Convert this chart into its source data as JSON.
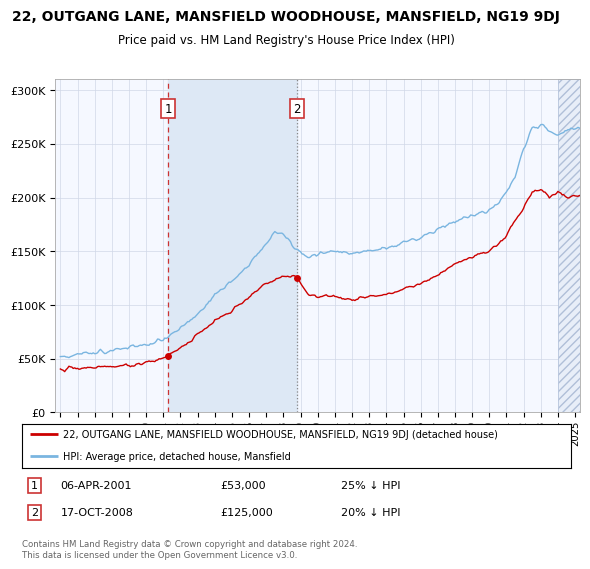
{
  "title": "22, OUTGANG LANE, MANSFIELD WOODHOUSE, MANSFIELD, NG19 9DJ",
  "subtitle": "Price paid vs. HM Land Registry's House Price Index (HPI)",
  "ylabel_ticks": [
    "£0",
    "£50K",
    "£100K",
    "£150K",
    "£200K",
    "£250K",
    "£300K"
  ],
  "ylim": [
    0,
    310000
  ],
  "xlim_start": 1994.7,
  "xlim_end": 2025.3,
  "sale1_date": 2001.27,
  "sale1_price": 53000,
  "sale1_label": "1",
  "sale1_date_str": "06-APR-2001",
  "sale1_pct": "25% ↓ HPI",
  "sale2_date": 2008.8,
  "sale2_price": 125000,
  "sale2_label": "2",
  "sale2_date_str": "17-OCT-2008",
  "sale2_pct": "20% ↓ HPI",
  "hpi_line_color": "#7ab5e0",
  "price_line_color": "#cc0000",
  "background_color": "#f5f8ff",
  "shade_between_color": "#dde8f5",
  "hatch_bg_color": "#e8eef8",
  "legend_label_price": "22, OUTGANG LANE, MANSFIELD WOODHOUSE, MANSFIELD, NG19 9DJ (detached house)",
  "legend_label_hpi": "HPI: Average price, detached house, Mansfield",
  "footer": "Contains HM Land Registry data © Crown copyright and database right 2024.\nThis data is licensed under the Open Government Licence v3.0."
}
